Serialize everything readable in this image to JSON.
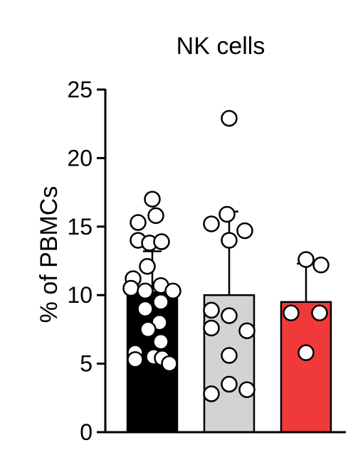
{
  "chart_data": {
    "type": "bar",
    "title": "NK cells",
    "ylabel": "% of PBMCs",
    "xlabel": "",
    "ylim": [
      0,
      25
    ],
    "yticks": [
      0,
      5,
      10,
      15,
      20,
      25
    ],
    "categories": [
      "",
      "",
      ""
    ],
    "series": [
      {
        "values": [
          10.2,
          10.0,
          9.5
        ],
        "error": [
          3.0,
          6.1,
          2.8
        ],
        "colors": [
          "#000000",
          "#d3d3d3",
          "#f03a3a"
        ],
        "points": [
          [
            17.0,
            15.8,
            15.3,
            14.0,
            13.8,
            13.9,
            12.1,
            11.2,
            10.5,
            10.3,
            10.7,
            10.3,
            9.5,
            9.0,
            8.0,
            7.5,
            6.6,
            5.8,
            5.5,
            5.3,
            5.4,
            5.0
          ],
          [
            22.9,
            15.9,
            15.2,
            14.7,
            14.0,
            8.9,
            8.5,
            7.4,
            7.6,
            5.6,
            3.5,
            3.1,
            2.8
          ],
          [
            12.6,
            12.2,
            8.7,
            8.7,
            5.8
          ]
        ]
      }
    ]
  }
}
